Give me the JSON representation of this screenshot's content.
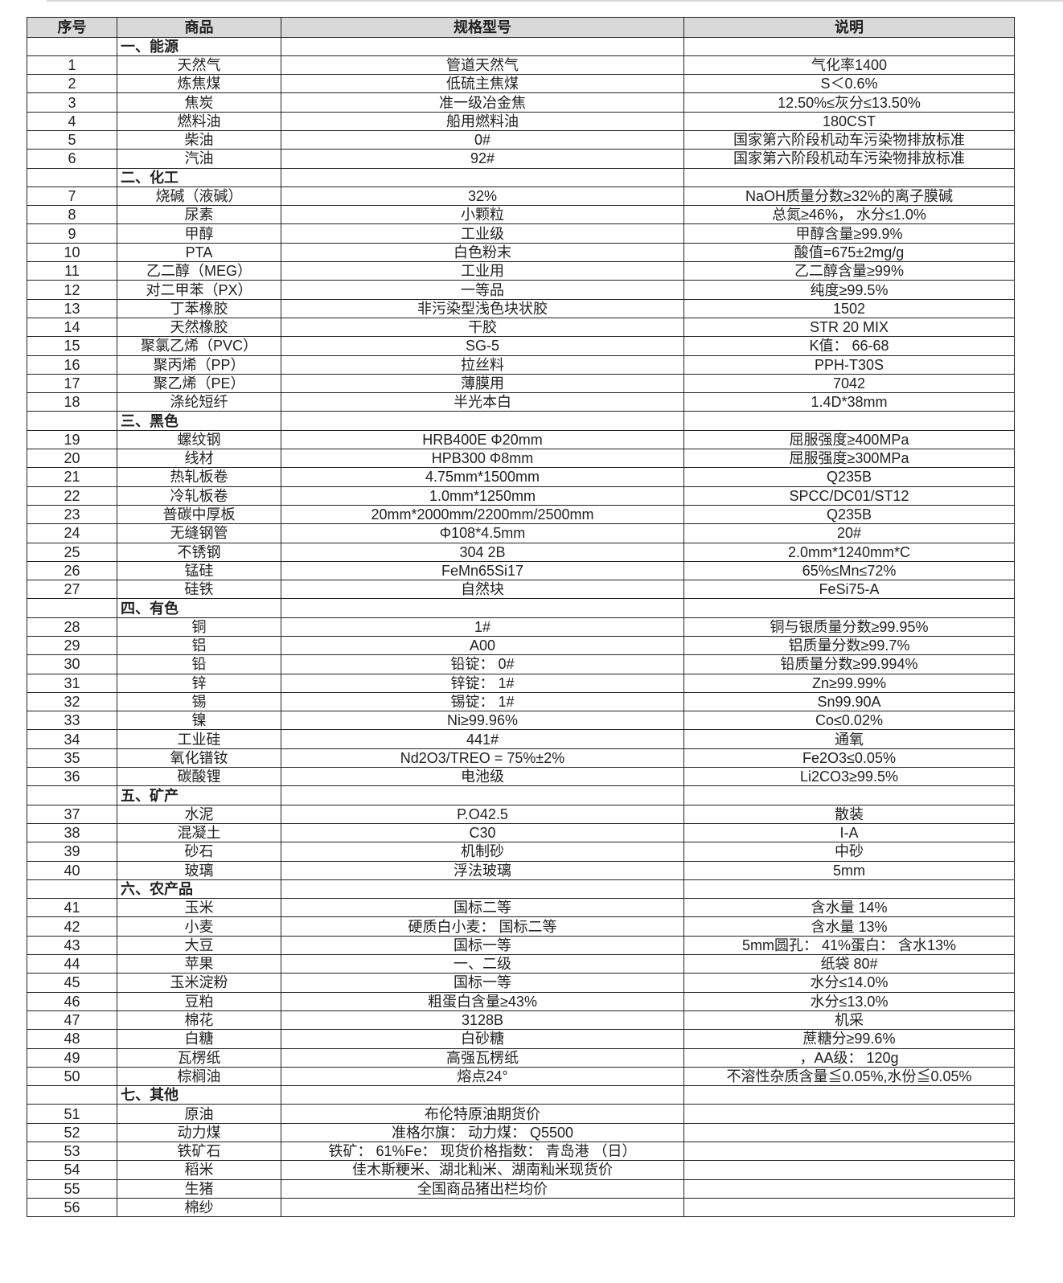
{
  "headers": [
    "序号",
    "商品",
    "规格型号",
    "说明"
  ],
  "sections": [
    {
      "title": "一、能源",
      "items": [
        [
          "1",
          "天然气",
          "管道天然气",
          "气化率1400"
        ],
        [
          "2",
          "炼焦煤",
          "低硫主焦煤",
          "S＜0.6%"
        ],
        [
          "3",
          "焦炭",
          "准一级冶金焦",
          "12.50%≤灰分≤13.50%"
        ],
        [
          "4",
          "燃料油",
          "船用燃料油",
          "180CST"
        ],
        [
          "5",
          "柴油",
          "0#",
          "国家第六阶段机动车污染物排放标准"
        ],
        [
          "6",
          "汽油",
          "92#",
          "国家第六阶段机动车污染物排放标准"
        ]
      ]
    },
    {
      "title": "二、化工",
      "items": [
        [
          "7",
          "烧碱（液碱）",
          "32%",
          "NaOH质量分数≥32%的离子膜碱"
        ],
        [
          "8",
          "尿素",
          "小颗粒",
          "总氮≥46%， 水分≤1.0%"
        ],
        [
          "9",
          "甲醇",
          "工业级",
          "甲醇含量≥99.9%"
        ],
        [
          "10",
          "PTA",
          "白色粉末",
          "酸值=675±2mg/g"
        ],
        [
          "11",
          "乙二醇（MEG）",
          "工业用",
          "乙二醇含量≥99%"
        ],
        [
          "12",
          "对二甲苯（PX）",
          "一等品",
          "纯度≥99.5%"
        ],
        [
          "13",
          "丁苯橡胶",
          "非污染型浅色块状胶",
          "1502"
        ],
        [
          "14",
          "天然橡胶",
          "干胶",
          "STR 20 MIX"
        ],
        [
          "15",
          "聚氯乙烯（PVC）",
          "SG-5",
          "K值： 66-68"
        ],
        [
          "16",
          "聚丙烯（PP）",
          "拉丝料",
          "PPH-T30S"
        ],
        [
          "17",
          "聚乙烯（PE）",
          "薄膜用",
          "7042"
        ],
        [
          "18",
          "涤纶短纤",
          "半光本白",
          "1.4D*38mm"
        ]
      ]
    },
    {
      "title": "三、黑色",
      "items": [
        [
          "19",
          "螺纹钢",
          "HRB400E Φ20mm",
          "屈服强度≥400MPa"
        ],
        [
          "20",
          "线材",
          "HPB300 Φ8mm",
          "屈服强度≥300MPa"
        ],
        [
          "21",
          "热轧板卷",
          "4.75mm*1500mm",
          "Q235B"
        ],
        [
          "22",
          "冷轧板卷",
          "1.0mm*1250mm",
          "SPCC/DC01/ST12"
        ],
        [
          "23",
          "普碳中厚板",
          "20mm*2000mm/2200mm/2500mm",
          "Q235B"
        ],
        [
          "24",
          "无缝钢管",
          "Φ108*4.5mm",
          "20#"
        ],
        [
          "25",
          "不锈钢",
          "304 2B",
          "2.0mm*1240mm*C"
        ],
        [
          "26",
          "锰硅",
          "FeMn65Si17",
          "65%≤Mn≤72%"
        ],
        [
          "27",
          "硅铁",
          "自然块",
          "FeSi75-A"
        ]
      ]
    },
    {
      "title": "四、有色",
      "items": [
        [
          "28",
          "铜",
          "1#",
          "铜与银质量分数≥99.95%"
        ],
        [
          "29",
          "铝",
          "A00",
          "铝质量分数≥99.7%"
        ],
        [
          "30",
          "铅",
          "铅锭： 0#",
          "铅质量分数≥99.994%"
        ],
        [
          "31",
          "锌",
          "锌锭： 1#",
          "Zn≥99.99%"
        ],
        [
          "32",
          "锡",
          "锡锭： 1#",
          "Sn99.90A"
        ],
        [
          "33",
          "镍",
          "Ni≥99.96%",
          "Co≤0.02%"
        ],
        [
          "34",
          "工业硅",
          "441#",
          "通氧"
        ],
        [
          "35",
          "氧化镨钕",
          "Nd2O3/TREO = 75%±2%",
          "Fe2O3≤0.05%"
        ],
        [
          "36",
          "碳酸锂",
          "电池级",
          "Li2CO3≥99.5%"
        ]
      ]
    },
    {
      "title": "五、矿产",
      "items": [
        [
          "37",
          "水泥",
          "P.O42.5",
          "散装"
        ],
        [
          "38",
          "混凝土",
          "C30",
          "I-A"
        ],
        [
          "39",
          "砂石",
          "机制砂",
          "中砂"
        ],
        [
          "40",
          "玻璃",
          "浮法玻璃",
          "5mm"
        ]
      ]
    },
    {
      "title": "六、农产品",
      "items": [
        [
          "41",
          "玉米",
          "国标二等",
          "含水量 14%"
        ],
        [
          "42",
          "小麦",
          "硬质白小麦： 国标二等",
          "含水量 13%"
        ],
        [
          "43",
          "大豆",
          "国标一等",
          "5mm圆孔： 41%蛋白： 含水13%"
        ],
        [
          "44",
          "苹果",
          "一、二级",
          "纸袋 80#"
        ],
        [
          "45",
          "玉米淀粉",
          "国标一等",
          "水分≤14.0%"
        ],
        [
          "46",
          "豆粕",
          "粗蛋白含量≥43%",
          "水分≤13.0%"
        ],
        [
          "47",
          "棉花",
          "3128B",
          "机采"
        ],
        [
          "48",
          "白糖",
          "白砂糖",
          "蔗糖分≥99.6%"
        ],
        [
          "49",
          "瓦楞纸",
          "高强瓦楞纸",
          "，AA级： 120g"
        ],
        [
          "50",
          "棕榈油",
          "熔点24°",
          "不溶性杂质含量≦0.05%,水份≦0.05%"
        ]
      ]
    },
    {
      "title": "七、其他",
      "items": [
        [
          "51",
          "原油",
          "布伦特原油期货价",
          ""
        ],
        [
          "52",
          "动力煤",
          "准格尔旗： 动力煤： Q5500",
          ""
        ],
        [
          "53",
          "铁矿石",
          "铁矿： 61%Fe： 现货价格指数： 青岛港 （日）",
          ""
        ],
        [
          "54",
          "稻米",
          "佳木斯粳米、湖北籼米、湖南籼米现货价",
          ""
        ],
        [
          "55",
          "生猪",
          "全国商品猪出栏均价",
          ""
        ],
        [
          "56",
          "棉纱",
          "",
          ""
        ]
      ]
    }
  ]
}
